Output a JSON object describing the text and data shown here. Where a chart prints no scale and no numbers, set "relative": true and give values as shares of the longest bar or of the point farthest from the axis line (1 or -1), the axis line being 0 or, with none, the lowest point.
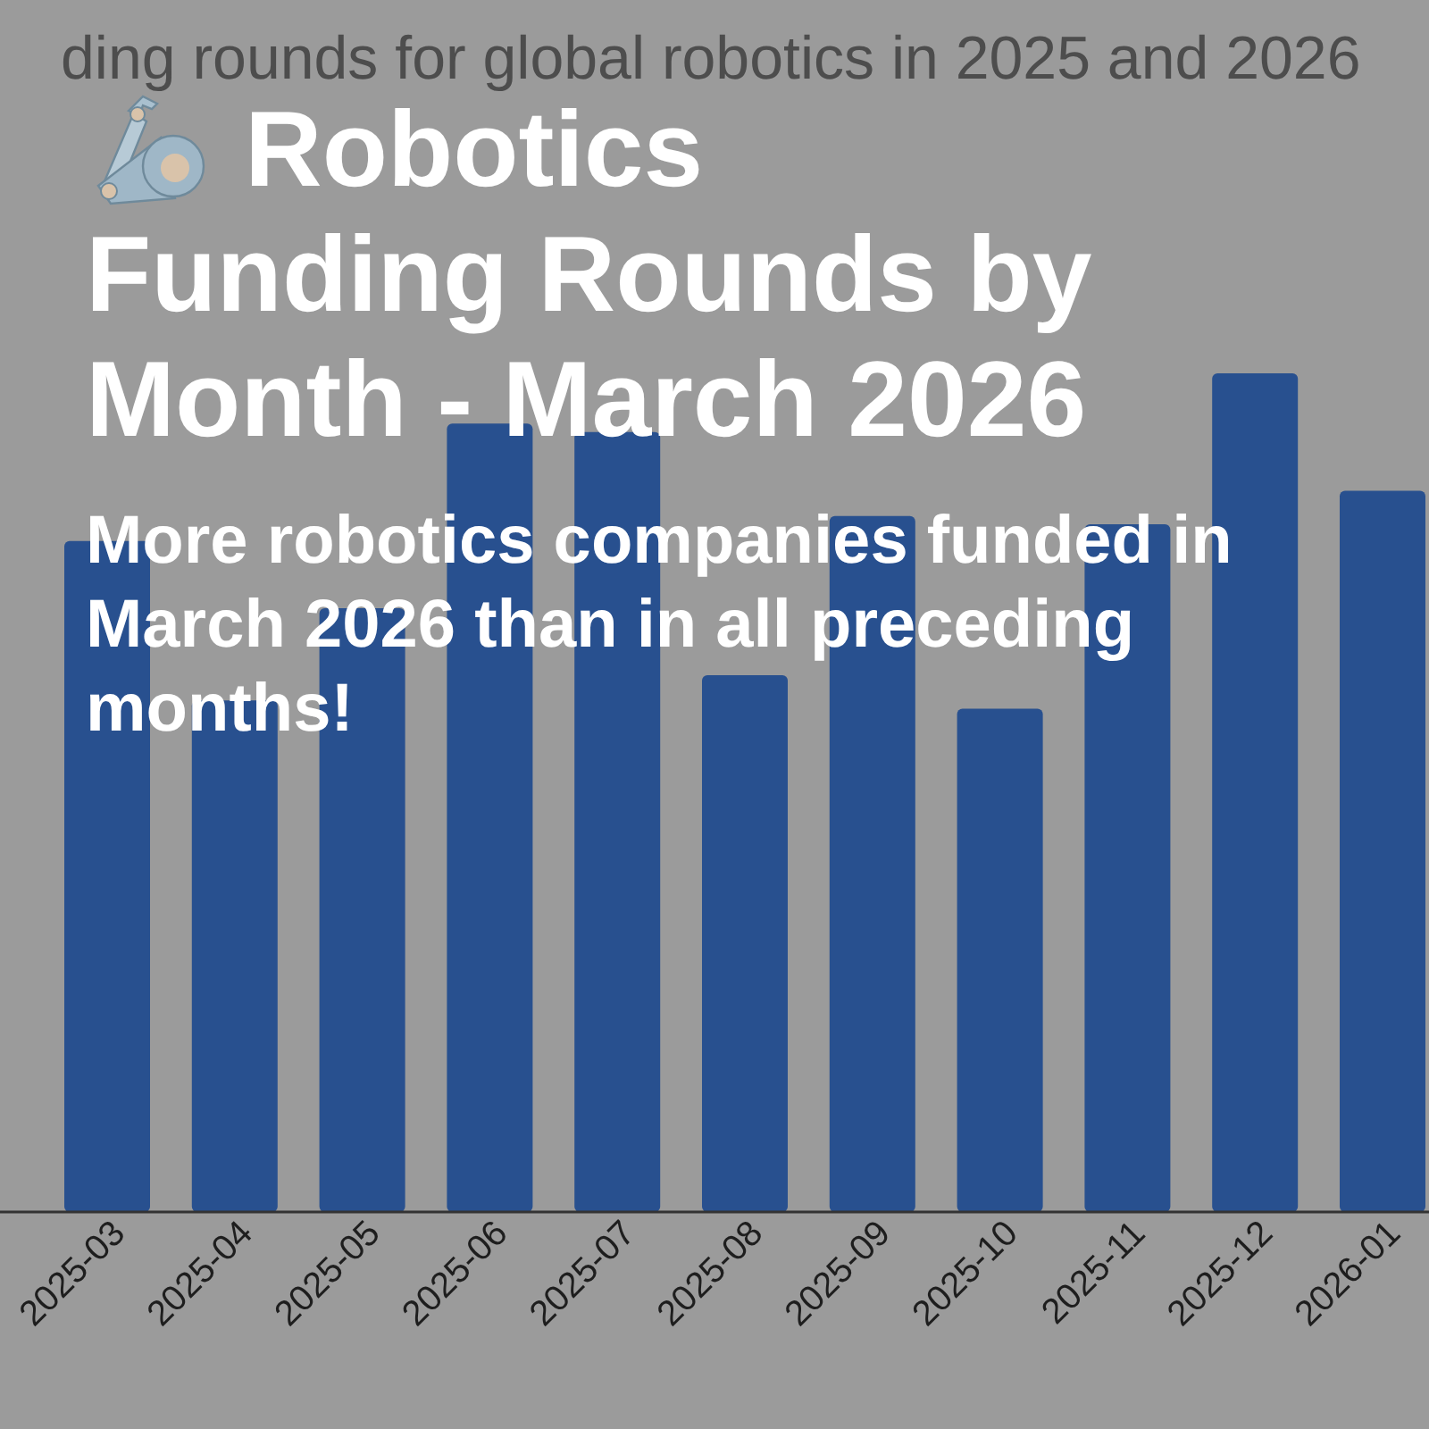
{
  "chart_data": {
    "type": "bar",
    "title": "Robotics Funding Rounds by Month - March 2026",
    "subtitle": "More robotics companies funded in March 2026 than in all preceding months!",
    "annotations": [
      "ding rounds for global robotics in 2025 and 2026"
    ],
    "categories": [
      "2025-03",
      "2025-04",
      "2025-05",
      "2025-06",
      "2025-07",
      "2025-08",
      "2025-09",
      "2025-10",
      "2025-11",
      "2025-12",
      "2026-01"
    ],
    "values": [
      0.8,
      0.61,
      0.72,
      0.94,
      0.93,
      0.64,
      0.83,
      0.6,
      0.82,
      1,
      0.86
    ],
    "color": "#28508f",
    "relative": true
  }
}
